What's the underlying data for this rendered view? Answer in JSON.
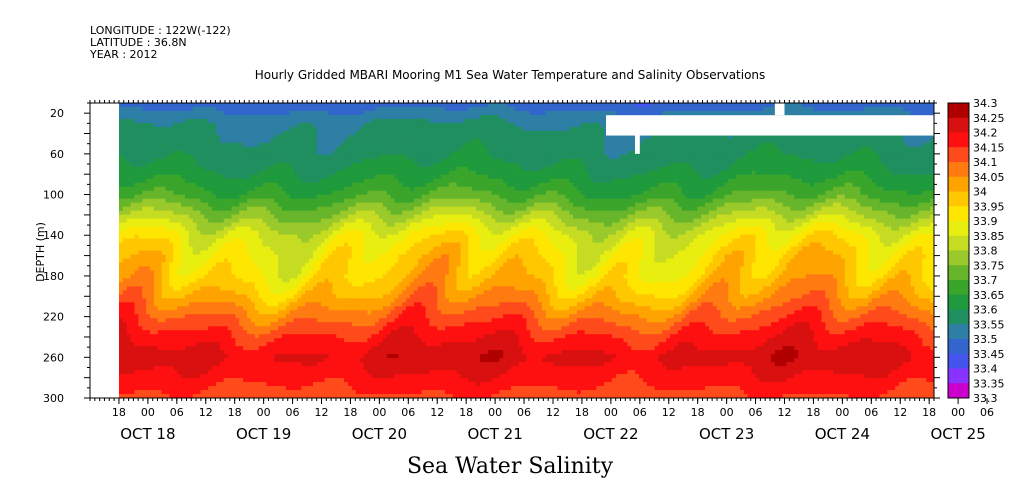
{
  "header": {
    "longitude": "LONGITUDE : 122W(-122)",
    "latitude": "LATITUDE : 36.8N",
    "year": "YEAR : 2012"
  },
  "colors": {
    "palette": [
      "#cc00cc",
      "#8833ff",
      "#4455ee",
      "#3366cc",
      "#2e7fa6",
      "#208f60",
      "#1f9a3c",
      "#3aa52b",
      "#66b52a",
      "#99c92a",
      "#c6dc22",
      "#e8ef10",
      "#ffe600",
      "#ffc700",
      "#ffa300",
      "#ff7a10",
      "#ff4a1c",
      "#ff1010",
      "#d81010",
      "#b00000"
    ],
    "background": "#ffffff",
    "missing": "#ffffff"
  },
  "chart_data": {
    "type": "heatmap",
    "title": "Hourly Gridded MBARI Mooring M1 Sea Water Temperature and Salinity Observations",
    "xlabel": "Sea Water Salinity",
    "ylabel": "DEPTH (m)",
    "ylim": [
      300,
      10
    ],
    "y_ticks": [
      "20",
      "60",
      "100",
      "140",
      "180",
      "220",
      "260",
      "300"
    ],
    "x_hour_ticks": [
      "18",
      "00",
      "06",
      "12",
      "18",
      "00",
      "06",
      "12",
      "18",
      "00",
      "06",
      "12",
      "18",
      "00",
      "06",
      "12",
      "18",
      "00",
      "06",
      "12",
      "18",
      "00",
      "06",
      "12",
      "18",
      "00",
      "06",
      "12",
      "18",
      "00",
      "06",
      "12"
    ],
    "x_day_labels": [
      "OCT 18",
      "OCT 19",
      "OCT 20",
      "OCT 21",
      "OCT 22",
      "OCT 23",
      "OCT 24",
      "OCT 25"
    ],
    "x_start": "2012-10-18T12:00",
    "data_start": "2012-10-18T18:00",
    "x_end": "2012-10-25T19:00",
    "legend": {
      "position": "right",
      "levels": [
        "34.3",
        "34.25",
        "34.2",
        "34.15",
        "34.1",
        "34.05",
        "34",
        "33.95",
        "33.9",
        "33.85",
        "33.8",
        "33.75",
        "33.7",
        "33.65",
        "33.6",
        "33.55",
        "33.5",
        "33.45",
        "33.4",
        "33.35",
        "33.3"
      ]
    },
    "depth_profile": [
      {
        "depth": 10,
        "salinity": 33.47
      },
      {
        "depth": 30,
        "salinity": 33.55
      },
      {
        "depth": 60,
        "salinity": 33.58
      },
      {
        "depth": 80,
        "salinity": 33.62
      },
      {
        "depth": 100,
        "salinity": 33.68
      },
      {
        "depth": 120,
        "salinity": 33.78
      },
      {
        "depth": 140,
        "salinity": 33.88
      },
      {
        "depth": 160,
        "salinity": 33.93
      },
      {
        "depth": 180,
        "salinity": 33.96
      },
      {
        "depth": 200,
        "salinity": 34.02
      },
      {
        "depth": 220,
        "salinity": 34.1
      },
      {
        "depth": 240,
        "salinity": 34.17
      },
      {
        "depth": 260,
        "salinity": 34.22
      },
      {
        "depth": 280,
        "salinity": 34.18
      },
      {
        "depth": 300,
        "salinity": 34.13
      }
    ],
    "grid": false
  }
}
